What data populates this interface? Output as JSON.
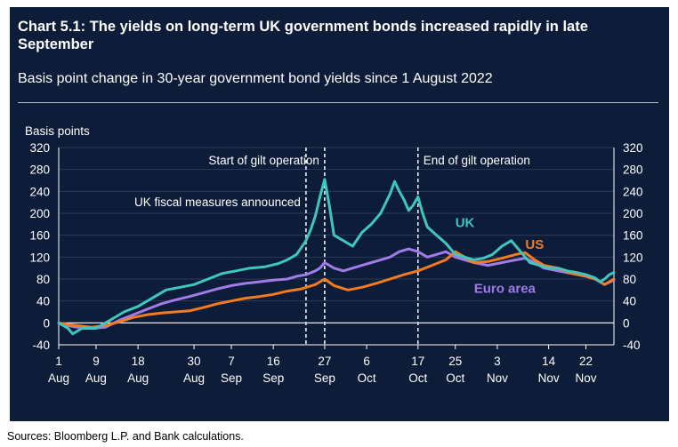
{
  "chart_data": {
    "type": "line",
    "title": "Chart 5.1: The yields on long-term UK government bonds increased rapidly in late September",
    "subtitle": "Basis point change in 30-year government bond yields since 1 August 2022",
    "ylabel": "Basis points",
    "ylim": [
      -40,
      320
    ],
    "yticks": [
      -40,
      0,
      40,
      80,
      120,
      160,
      200,
      240,
      280,
      320
    ],
    "xticks": [
      {
        "day": 1,
        "label": "1",
        "sublabel": "Aug"
      },
      {
        "day": 9,
        "label": "9",
        "sublabel": "Aug"
      },
      {
        "day": 18,
        "label": "18",
        "sublabel": "Aug"
      },
      {
        "day": 30,
        "label": "30",
        "sublabel": "Aug"
      },
      {
        "day": 38,
        "label": "7",
        "sublabel": "Sep"
      },
      {
        "day": 47,
        "label": "16",
        "sublabel": "Sep"
      },
      {
        "day": 58,
        "label": "27",
        "sublabel": "Sep"
      },
      {
        "day": 67,
        "label": "6",
        "sublabel": "Oct"
      },
      {
        "day": 78,
        "label": "17",
        "sublabel": "Oct"
      },
      {
        "day": 86,
        "label": "25",
        "sublabel": "Oct"
      },
      {
        "day": 95,
        "label": "3",
        "sublabel": "Nov"
      },
      {
        "day": 106,
        "label": "14",
        "sublabel": "Nov"
      },
      {
        "day": 114,
        "label": "22",
        "sublabel": "Nov"
      }
    ],
    "xlim": [
      1,
      120
    ],
    "annotations": [
      {
        "day": 54,
        "label": "UK fiscal measures announced"
      },
      {
        "day": 58,
        "label": "Start of gilt operation"
      },
      {
        "day": 78,
        "label": "End of gilt operation"
      }
    ],
    "series": [
      {
        "name": "UK",
        "color": "#3fc6be",
        "x": [
          1,
          3,
          4,
          6,
          9,
          12,
          15,
          18,
          21,
          24,
          27,
          30,
          33,
          36,
          39,
          42,
          45,
          48,
          50,
          52,
          54,
          55,
          56,
          57,
          58,
          59,
          60,
          62,
          64,
          66,
          68,
          70,
          72,
          73,
          74,
          75,
          76,
          77,
          78,
          79,
          80,
          82,
          84,
          86,
          88,
          90,
          92,
          94,
          96,
          98,
          100,
          102,
          104,
          106,
          108,
          110,
          112,
          114,
          116,
          117,
          118,
          119,
          120
        ],
        "values": [
          0,
          -10,
          -20,
          -10,
          -10,
          5,
          20,
          30,
          45,
          60,
          65,
          70,
          80,
          90,
          95,
          100,
          102,
          108,
          115,
          125,
          150,
          170,
          195,
          230,
          262,
          215,
          160,
          150,
          140,
          165,
          180,
          200,
          235,
          258,
          240,
          225,
          205,
          215,
          230,
          200,
          175,
          160,
          145,
          125,
          120,
          115,
          118,
          125,
          140,
          150,
          130,
          110,
          105,
          100,
          100,
          95,
          92,
          88,
          82,
          75,
          80,
          88,
          92
        ]
      },
      {
        "name": "US",
        "color": "#f47b20",
        "x": [
          1,
          3,
          5,
          8,
          11,
          14,
          17,
          20,
          23,
          26,
          29,
          32,
          35,
          38,
          41,
          44,
          47,
          50,
          53,
          56,
          58,
          60,
          63,
          66,
          69,
          72,
          75,
          78,
          81,
          84,
          86,
          88,
          90,
          93,
          96,
          99,
          101,
          103,
          105,
          108,
          111,
          114,
          116,
          118,
          120
        ],
        "values": [
          0,
          -3,
          -5,
          -8,
          -5,
          2,
          10,
          15,
          18,
          20,
          22,
          28,
          35,
          40,
          45,
          48,
          52,
          58,
          62,
          70,
          80,
          68,
          60,
          65,
          72,
          80,
          88,
          95,
          105,
          115,
          130,
          120,
          110,
          112,
          118,
          125,
          128,
          115,
          105,
          100,
          90,
          85,
          80,
          70,
          80
        ]
      },
      {
        "name": "Euro area",
        "color": "#a17be8",
        "x": [
          1,
          3,
          5,
          8,
          11,
          14,
          17,
          20,
          23,
          26,
          29,
          32,
          35,
          38,
          41,
          44,
          47,
          50,
          52,
          54,
          56,
          57,
          58,
          60,
          62,
          64,
          66,
          68,
          70,
          72,
          74,
          76,
          78,
          80,
          82,
          84,
          86,
          88,
          90,
          93,
          96,
          99,
          101,
          103,
          105,
          108,
          111,
          114,
          116,
          118,
          120
        ],
        "values": [
          0,
          -5,
          -8,
          -10,
          -8,
          5,
          15,
          25,
          35,
          42,
          48,
          55,
          62,
          68,
          72,
          75,
          78,
          80,
          85,
          88,
          95,
          100,
          110,
          100,
          95,
          100,
          105,
          110,
          115,
          120,
          130,
          135,
          130,
          120,
          125,
          130,
          120,
          115,
          110,
          105,
          110,
          115,
          118,
          110,
          100,
          95,
          90,
          85,
          80,
          70,
          78
        ]
      }
    ],
    "series_labels": [
      {
        "name": "UK",
        "label": "UK",
        "color": "#3fc6be",
        "anchor_day": 86,
        "anchor_value": 175
      },
      {
        "name": "US",
        "label": "US",
        "color": "#f47b20",
        "anchor_day": 101,
        "anchor_value": 135
      },
      {
        "name": "Euro area",
        "label": "Euro area",
        "color": "#a17be8",
        "anchor_day": 90,
        "anchor_value": 55
      }
    ]
  },
  "source_text": "Sources: Bloomberg L.P. and Bank calculations."
}
